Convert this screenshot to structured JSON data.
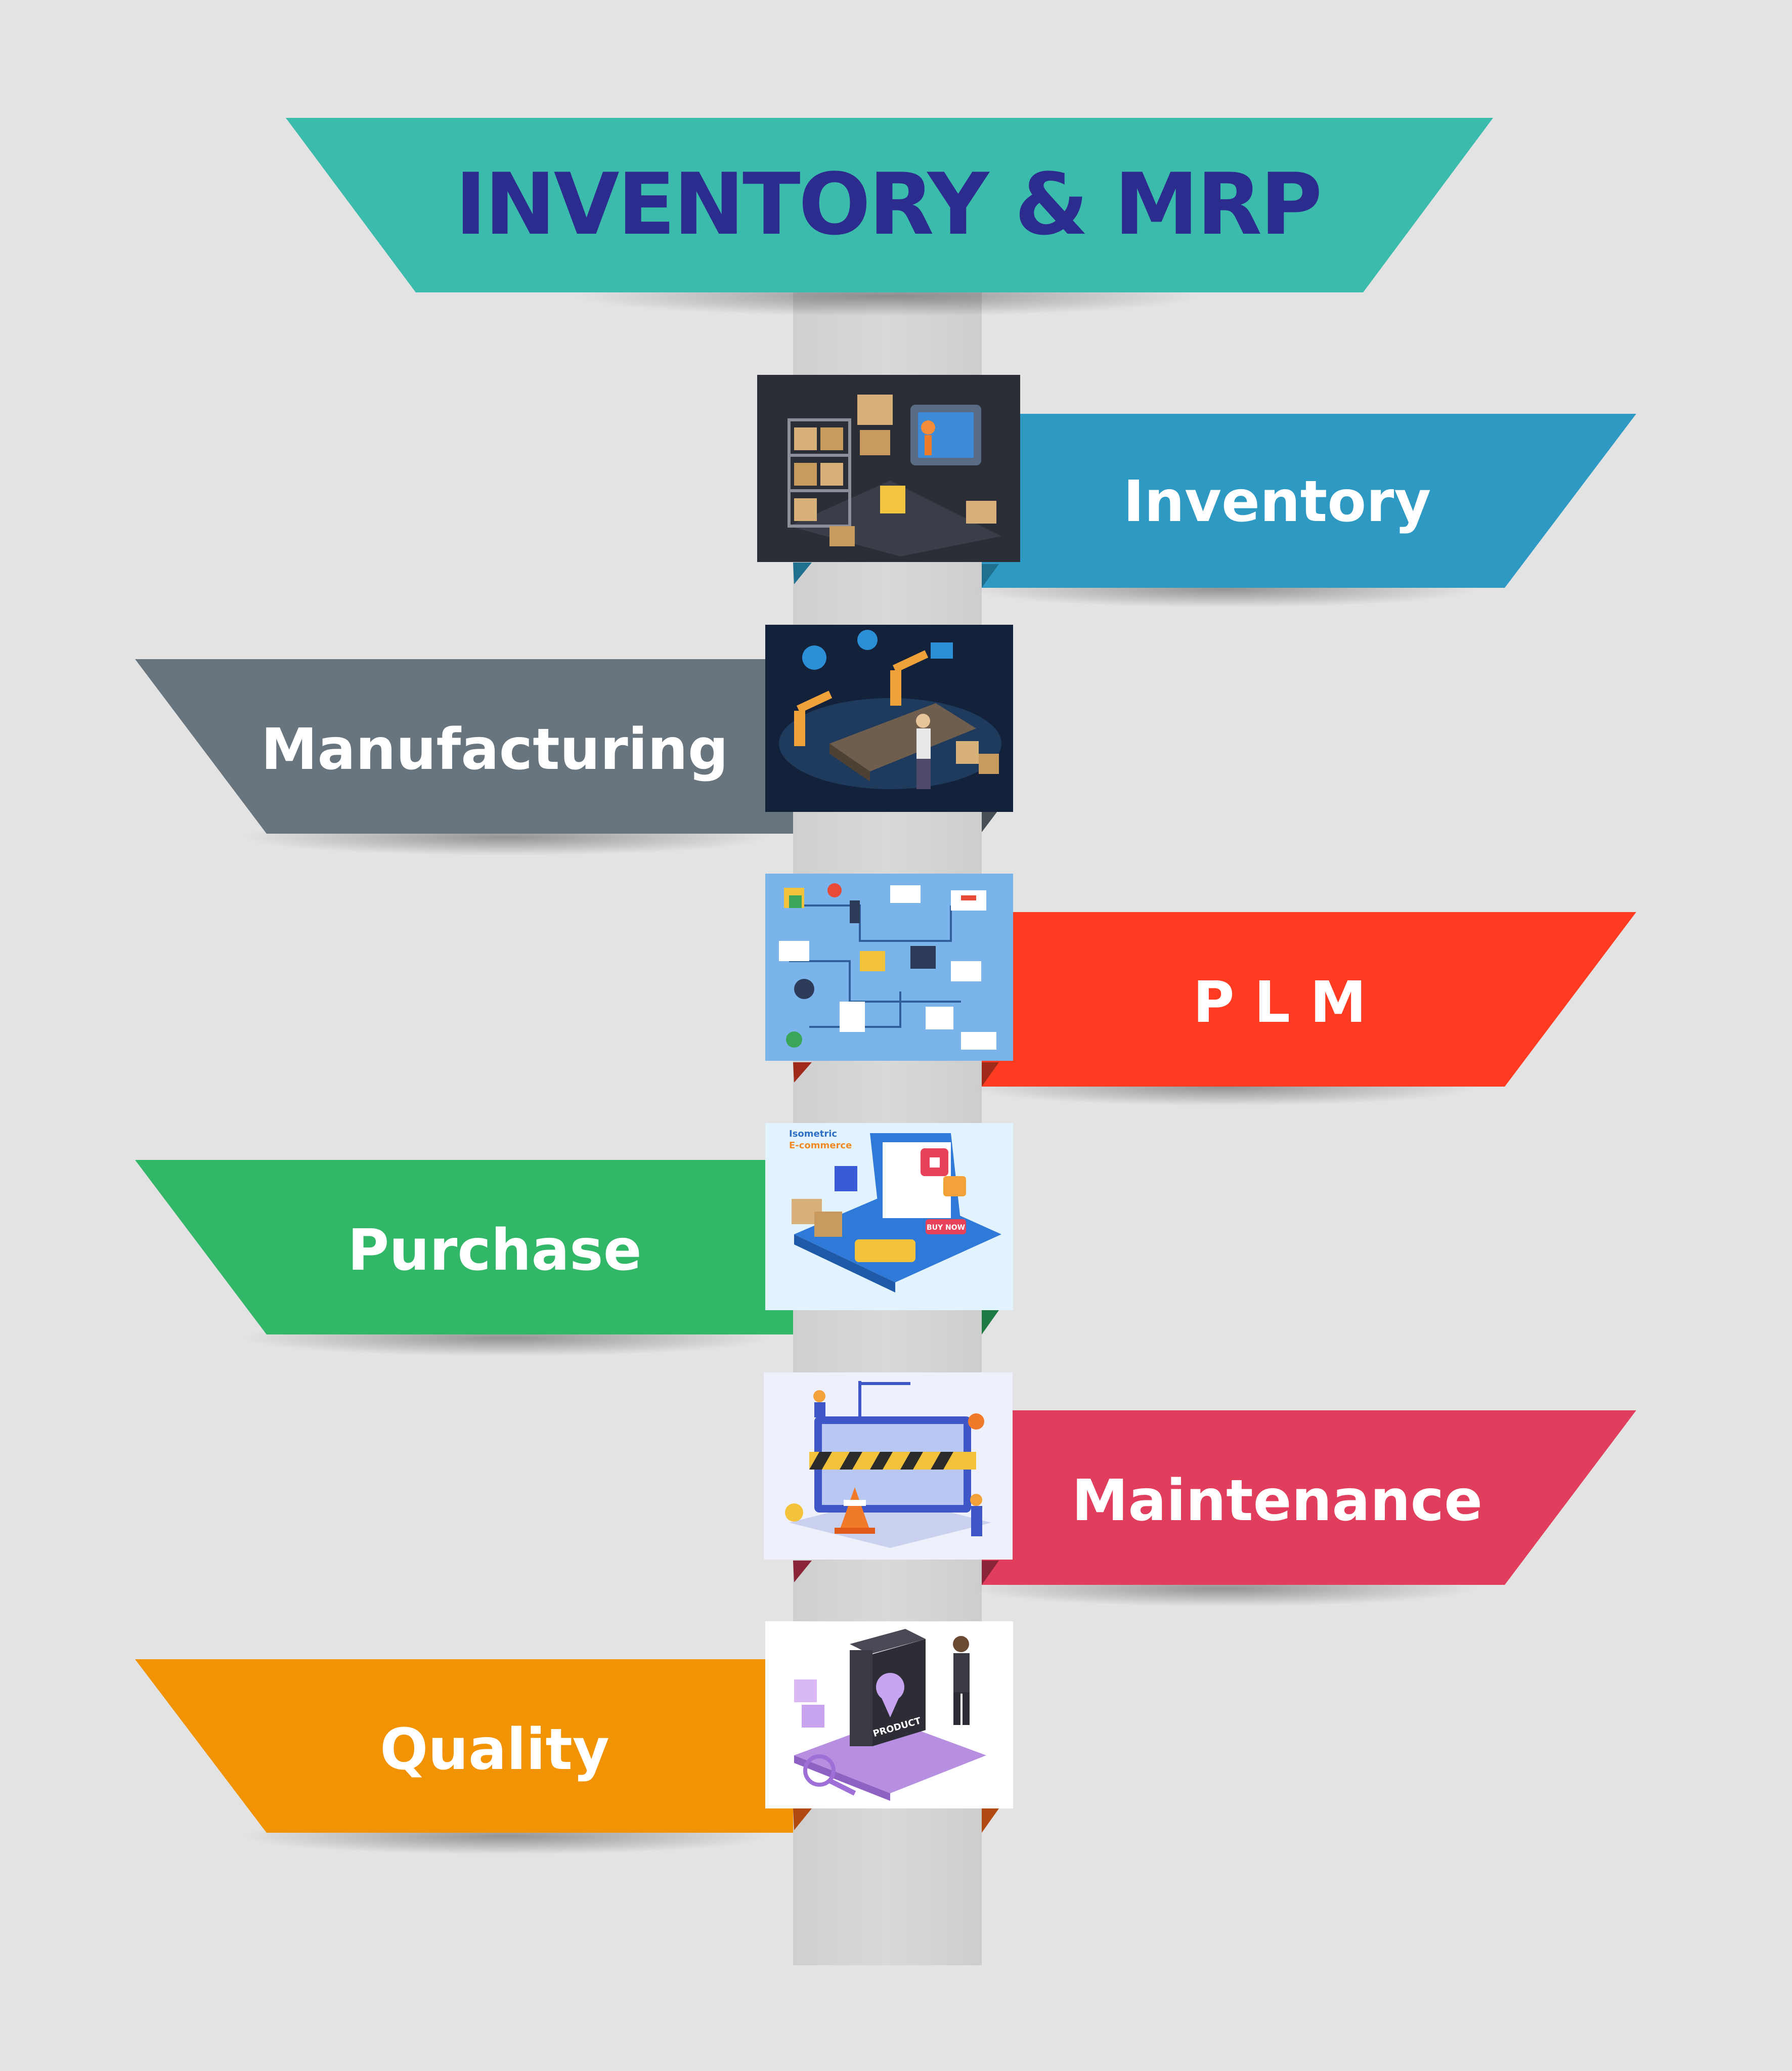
{
  "title": "INVENTORY & MRP",
  "colors": {
    "background": "#e3e3e3",
    "pole": "#d3d3d3",
    "title_banner": "#3bbbab",
    "title_text": "#2c2c8e"
  },
  "items": [
    {
      "label": "Inventory",
      "side": "right",
      "color": "#2e9ac3",
      "illustration": "warehouse-inventory-illustration"
    },
    {
      "label": "Manufacturing",
      "side": "left",
      "color": "#68757f",
      "illustration": "robotic-assembly-line-illustration"
    },
    {
      "label": "P L M",
      "side": "right",
      "color": "#ff3b22",
      "illustration": "product-lifecycle-infographic-illustration"
    },
    {
      "label": "Purchase",
      "side": "left",
      "color": "#31b767",
      "illustration": "isometric-ecommerce-illustration"
    },
    {
      "label": "Maintenance",
      "side": "right",
      "color": "#e03e5c",
      "illustration": "website-maintenance-illustration"
    },
    {
      "label": "Quality",
      "side": "left",
      "color": "#f19303",
      "illustration": "product-quality-check-illustration"
    }
  ],
  "thumbnail_texts": {
    "ecommerce_line1": "Isometric",
    "ecommerce_line2": "E-commerce",
    "ecommerce_button": "BUY NOW",
    "quality_box": "PRODUCT"
  }
}
